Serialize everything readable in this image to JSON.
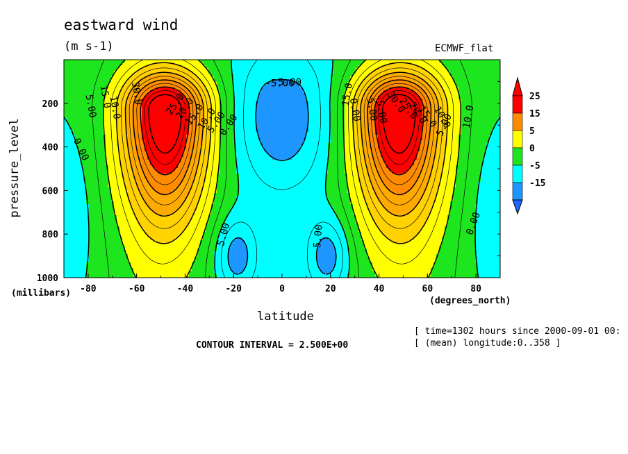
{
  "chart_data": {
    "type": "heatmap",
    "title": "eastward wind",
    "units": "(m s-1)",
    "dataset": "ECMWF_flat",
    "xlabel": "latitude",
    "ylabel": "pressure_level",
    "ylabel_units": "(millibars)",
    "xlabel_units": "(degrees_north)",
    "xlim": [
      -90,
      90
    ],
    "ylim": [
      1000,
      0
    ],
    "x_ticks": [
      "-80",
      "-60",
      "-40",
      "-20",
      "0",
      "20",
      "40",
      "60",
      "80"
    ],
    "y_ticks": [
      "200",
      "400",
      "600",
      "800",
      "1000"
    ],
    "colorbar": {
      "labels": [
        "25",
        "15",
        "5",
        "0",
        "-5",
        "-15"
      ],
      "colors": [
        "#1e64ff",
        "#00b4ff",
        "#00ffff",
        "#1ee61e",
        "#ffff00",
        "#ffaa00",
        "#ff8c00",
        "#ff0000"
      ]
    },
    "contour_labels": [
      "-5.00",
      "30.0",
      "15.0",
      "5.00",
      "10.0",
      "0.00",
      "25.0",
      "20.0",
      "15.0",
      "10.0",
      "5.00",
      "0.00",
      "5.00",
      "-5.00",
      "5.00",
      "15.0",
      "30.0",
      "25.0",
      "20.0",
      "15.0",
      "10.0",
      "5.00",
      "0.00",
      "5.00",
      "10.0",
      "0.00",
      "5.00"
    ],
    "features": [
      {
        "name": "southern jet core",
        "lat": -48,
        "pressure": 230,
        "max": 30
      },
      {
        "name": "northern jet core",
        "lat": 48,
        "pressure": 230,
        "max": 30
      },
      {
        "name": "equatorial easterlies",
        "lat": 0,
        "pressure": 250,
        "min": -7.5
      },
      {
        "name": "southern trade easterlies",
        "lat": -20,
        "pressure": 900,
        "min": -7.5
      },
      {
        "name": "northern trade easterlies",
        "lat": 20,
        "pressure": 900,
        "min": -7.5
      }
    ]
  },
  "contour_interval": "CONTOUR INTERVAL = 2.500E+00",
  "info_line1": "[ time=1302 hours since 2000-09-01 00:",
  "info_line2": "[ (mean) longitude:0..358 ]"
}
